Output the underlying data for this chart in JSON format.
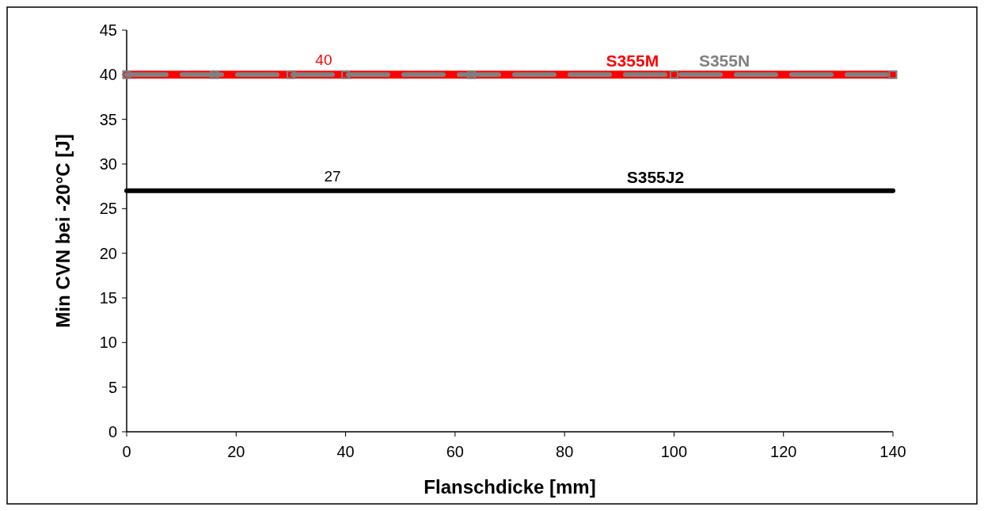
{
  "chart_data": {
    "type": "line",
    "xlabel": "Flanschdicke  [mm]",
    "ylabel": "Min CVN bei  -20°C [J]",
    "xlim": [
      0,
      140
    ],
    "xticks": [
      0,
      20,
      40,
      60,
      80,
      100,
      120,
      140
    ],
    "ylim": [
      0,
      45
    ],
    "yticks": [
      0,
      5,
      10,
      15,
      20,
      25,
      30,
      35,
      40,
      45
    ],
    "grid": false,
    "legend": false,
    "series": [
      {
        "name": "S355M",
        "color": "#ff0000",
        "x": [
          0,
          140
        ],
        "values": [
          40,
          40
        ],
        "line_style": "solid",
        "marker": "none"
      },
      {
        "name": "S355N",
        "color": "#808080",
        "x": [
          0,
          16,
          30,
          40,
          63,
          100,
          140
        ],
        "values": [
          40,
          40,
          40,
          40,
          40,
          40,
          40
        ],
        "line_style": "dashed",
        "marker": "square"
      },
      {
        "name": "S355J2",
        "color": "#000000",
        "x": [
          0,
          140
        ],
        "values": [
          27,
          27
        ],
        "line_style": "solid",
        "marker": "none"
      }
    ],
    "annotations": [
      {
        "text": "40",
        "x": 36,
        "y": 40
      },
      {
        "text": "27",
        "x": 37.6,
        "y": 27
      }
    ]
  }
}
